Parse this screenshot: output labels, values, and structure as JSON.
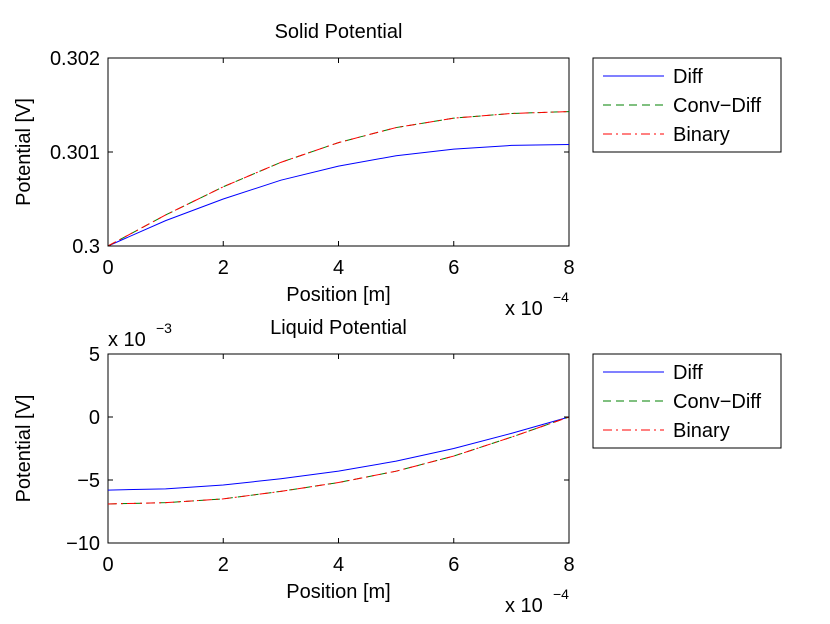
{
  "chart_data": [
    {
      "type": "line",
      "title": "Solid Potential",
      "xlabel": "Position [m]",
      "ylabel": "Potential [V]",
      "x_multiplier": "x 10",
      "x_multiplier_exp": "−4",
      "y_multiplier": "",
      "y_multiplier_exp": "",
      "xlim": [
        0,
        8
      ],
      "ylim": [
        0.3,
        0.302
      ],
      "xticks": [
        0,
        2,
        4,
        6,
        8
      ],
      "xtick_labels": [
        "0",
        "2",
        "4",
        "6",
        "8"
      ],
      "yticks": [
        0.3,
        0.301,
        0.302
      ],
      "ytick_labels": [
        "0.3",
        "0.301",
        "0.302"
      ],
      "grid": false,
      "legend_position": "outside-right",
      "series": [
        {
          "name": "Diff",
          "color": "#0000ff",
          "dash": "solid",
          "x": [
            0,
            1,
            2,
            3,
            4,
            5,
            6,
            7,
            8
          ],
          "y": [
            0.3,
            0.30027,
            0.3005,
            0.3007,
            0.30085,
            0.30096,
            0.30103,
            0.30107,
            0.30108
          ]
        },
        {
          "name": "Conv−Diff",
          "color": "#008000",
          "dash": "dashed",
          "x": [
            0,
            1,
            2,
            3,
            4,
            5,
            6,
            7,
            8
          ],
          "y": [
            0.3,
            0.30033,
            0.30063,
            0.30089,
            0.3011,
            0.30126,
            0.30136,
            0.30141,
            0.30143
          ]
        },
        {
          "name": "Binary",
          "color": "#ff0000",
          "dash": "dashdot",
          "x": [
            0,
            1,
            2,
            3,
            4,
            5,
            6,
            7,
            8
          ],
          "y": [
            0.3,
            0.30033,
            0.30063,
            0.30089,
            0.3011,
            0.30126,
            0.30136,
            0.30141,
            0.30143
          ]
        }
      ]
    },
    {
      "type": "line",
      "title": "Liquid Potential",
      "xlabel": "Position [m]",
      "ylabel": "Potential [V]",
      "x_multiplier": "x 10",
      "x_multiplier_exp": "−4",
      "y_multiplier": "x 10",
      "y_multiplier_exp": "−3",
      "xlim": [
        0,
        8
      ],
      "ylim": [
        -10,
        5
      ],
      "xticks": [
        0,
        2,
        4,
        6,
        8
      ],
      "xtick_labels": [
        "0",
        "2",
        "4",
        "6",
        "8"
      ],
      "yticks": [
        5,
        0,
        -5,
        -10
      ],
      "ytick_labels": [
        "5",
        "0",
        "−5",
        "−10"
      ],
      "grid": false,
      "legend_position": "outside-right",
      "series": [
        {
          "name": "Diff",
          "color": "#0000ff",
          "dash": "solid",
          "x": [
            0,
            1,
            2,
            3,
            4,
            5,
            6,
            7,
            8
          ],
          "y": [
            -5.8,
            -5.7,
            -5.4,
            -4.9,
            -4.3,
            -3.5,
            -2.5,
            -1.3,
            0
          ]
        },
        {
          "name": "Conv−Diff",
          "color": "#008000",
          "dash": "dashed",
          "x": [
            0,
            1,
            2,
            3,
            4,
            5,
            6,
            7,
            8
          ],
          "y": [
            -6.9,
            -6.8,
            -6.5,
            -5.9,
            -5.2,
            -4.3,
            -3.1,
            -1.6,
            0
          ]
        },
        {
          "name": "Binary",
          "color": "#ff0000",
          "dash": "dashdot",
          "x": [
            0,
            1,
            2,
            3,
            4,
            5,
            6,
            7,
            8
          ],
          "y": [
            -6.9,
            -6.8,
            -6.5,
            -5.9,
            -5.2,
            -4.3,
            -3.1,
            -1.6,
            0
          ]
        }
      ]
    }
  ]
}
